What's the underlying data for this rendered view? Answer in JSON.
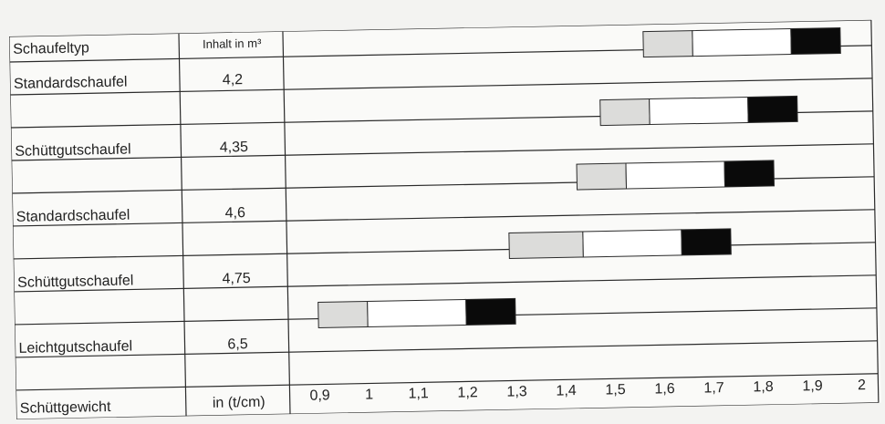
{
  "corner_text": "",
  "columns": {
    "type_header": "Schaufeltyp",
    "volume_header": "Inhalt in m³"
  },
  "rows": [
    {
      "type": "Standardschaufel",
      "volume": "4,2"
    },
    {
      "type": "Schüttgutschaufel",
      "volume": "4,35"
    },
    {
      "type": "Standardschaufel",
      "volume": "4,6"
    },
    {
      "type": "Schüttgutschaufel",
      "volume": "4,75"
    },
    {
      "type": "Leichtgutschaufel",
      "volume": "6,5"
    }
  ],
  "footer": {
    "label": "Schüttgewicht",
    "unit": "in (t/cm)"
  },
  "axis": {
    "ticks": [
      "0,9",
      "1",
      "1,1",
      "1,2",
      "1,3",
      "1,4",
      "1,5",
      "1,6",
      "1,7",
      "1,8",
      "1,9",
      "2"
    ],
    "min": 0.9,
    "max": 2.0
  },
  "colors": {
    "light_segment": "#dcdcda",
    "medium_segment": "#ffffff",
    "heavy_segment": "#0a0a0a",
    "grid": "#2a2a2a"
  },
  "chart_data": {
    "type": "bar",
    "categories": [
      "Standardschaufel",
      "Schüttgutschaufel",
      "Standardschaufel",
      "Schüttgutschaufel",
      "Leichtgutschaufel"
    ],
    "xlabel": "Schüttgewicht in (t/cm)",
    "xlim": [
      0.9,
      2.0
    ],
    "series": [
      {
        "light": [
          1.57,
          1.67
        ],
        "medium": [
          1.67,
          1.87
        ],
        "heavy": [
          1.87,
          1.97
        ]
      },
      {
        "light": [
          1.48,
          1.58
        ],
        "medium": [
          1.58,
          1.78
        ],
        "heavy": [
          1.78,
          1.88
        ]
      },
      {
        "light": [
          1.43,
          1.53
        ],
        "medium": [
          1.53,
          1.73
        ],
        "heavy": [
          1.73,
          1.83
        ]
      },
      {
        "light": [
          1.29,
          1.44
        ],
        "medium": [
          1.44,
          1.64
        ],
        "heavy": [
          1.64,
          1.74
        ]
      },
      {
        "light": [
          0.9,
          1.0
        ],
        "medium": [
          1.0,
          1.2
        ],
        "heavy": [
          1.2,
          1.3
        ]
      }
    ]
  }
}
